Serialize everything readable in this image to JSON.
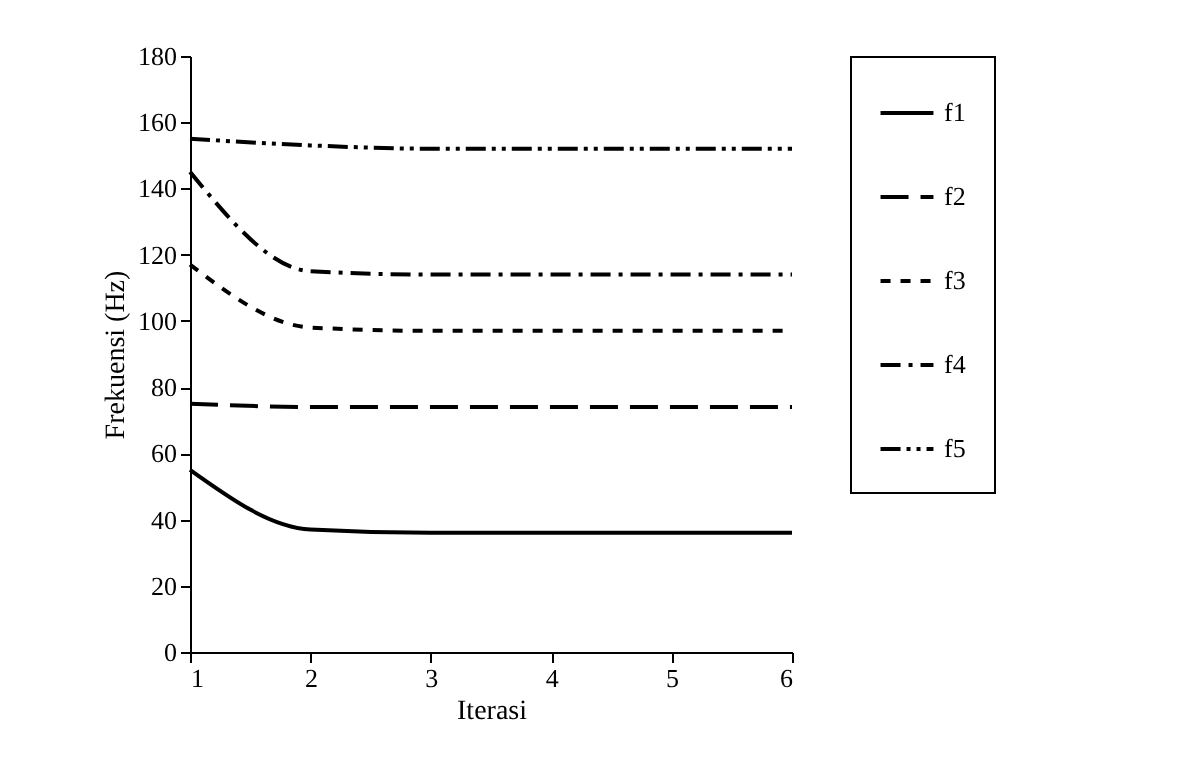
{
  "chart_data": {
    "type": "line",
    "xlabel": "Iterasi",
    "ylabel": "Frekuensi (Hz)",
    "x": [
      1,
      2,
      3,
      4,
      5,
      6
    ],
    "series": [
      {
        "name": "f1",
        "color": "#000000",
        "line_style": "solid",
        "values": [
          55,
          37,
          36,
          36,
          36,
          36
        ]
      },
      {
        "name": "f2",
        "color": "#000000",
        "line_style": "dashed",
        "values": [
          75,
          74,
          74,
          74,
          74,
          74
        ]
      },
      {
        "name": "f3",
        "color": "#000000",
        "line_style": "dotted",
        "values": [
          117,
          98,
          97,
          97,
          97,
          97
        ]
      },
      {
        "name": "f4",
        "color": "#000000",
        "line_style": "dashdot",
        "values": [
          145,
          115,
          114,
          114,
          114,
          114
        ]
      },
      {
        "name": "f5",
        "color": "#000000",
        "line_style": "dashdotdot",
        "values": [
          155,
          153,
          152,
          152,
          152,
          152
        ]
      }
    ],
    "xlim": [
      1,
      6
    ],
    "xticks": [
      1,
      2,
      3,
      4,
      5,
      6
    ],
    "ylim": [
      0,
      180
    ],
    "yticks": [
      0,
      20,
      40,
      60,
      80,
      100,
      120,
      140,
      160,
      180
    ],
    "grid": false,
    "legend": "right",
    "marker": "none"
  }
}
